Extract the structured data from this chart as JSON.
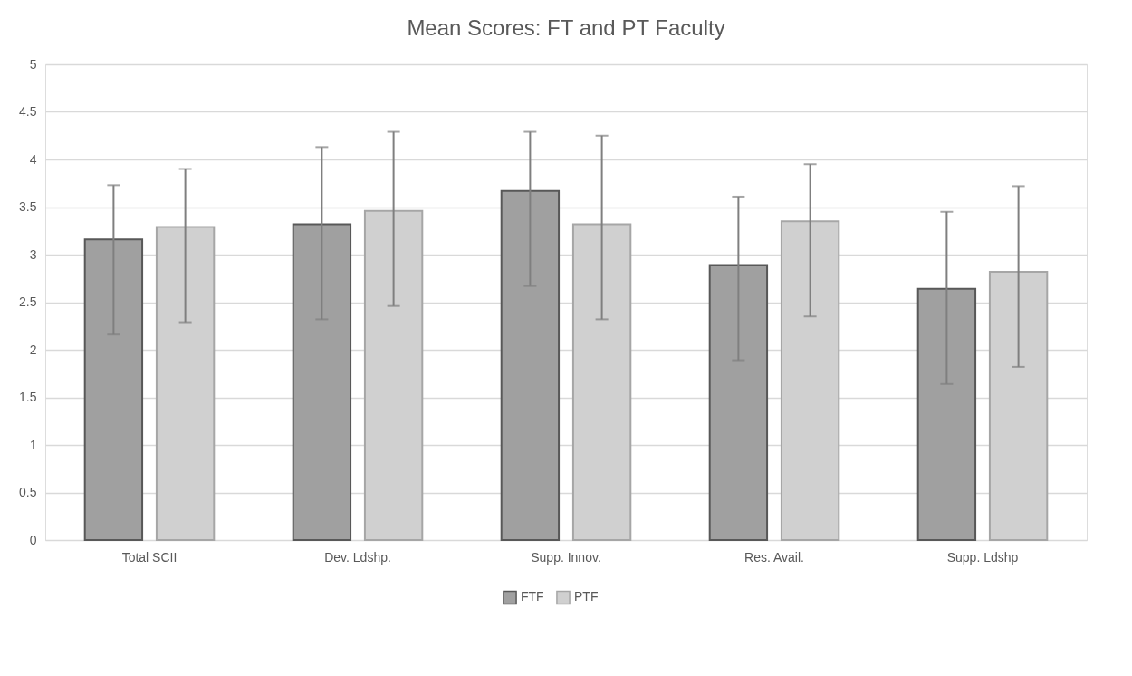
{
  "chart_data": {
    "type": "bar",
    "title": "Mean Scores:  FT and PT Faculty",
    "categories": [
      "Total SCII",
      "Dev. Ldshp.",
      "Supp. Innov.",
      "Res. Avail.",
      "Supp. Ldshp"
    ],
    "series": [
      {
        "name": "FTF",
        "color": "#a0a0a0",
        "values": [
          3.16,
          3.32,
          3.67,
          2.89,
          2.64
        ],
        "errors": [
          [
            2.16,
            3.73
          ],
          [
            2.32,
            4.13
          ],
          [
            2.67,
            4.29
          ],
          [
            1.89,
            3.61
          ],
          [
            1.64,
            3.45
          ]
        ]
      },
      {
        "name": "PTF",
        "color": "#d0d0d0",
        "values": [
          3.29,
          3.46,
          3.32,
          3.35,
          2.82
        ],
        "errors": [
          [
            2.29,
            3.9
          ],
          [
            2.46,
            4.29
          ],
          [
            2.32,
            4.25
          ],
          [
            2.35,
            3.95
          ],
          [
            1.82,
            3.72
          ]
        ]
      }
    ],
    "ylim": [
      0,
      5
    ],
    "yticks": [
      0,
      0.5,
      1,
      1.5,
      2,
      2.5,
      3,
      3.5,
      4,
      4.5,
      5
    ],
    "grid": "y",
    "legend": "bottom"
  }
}
